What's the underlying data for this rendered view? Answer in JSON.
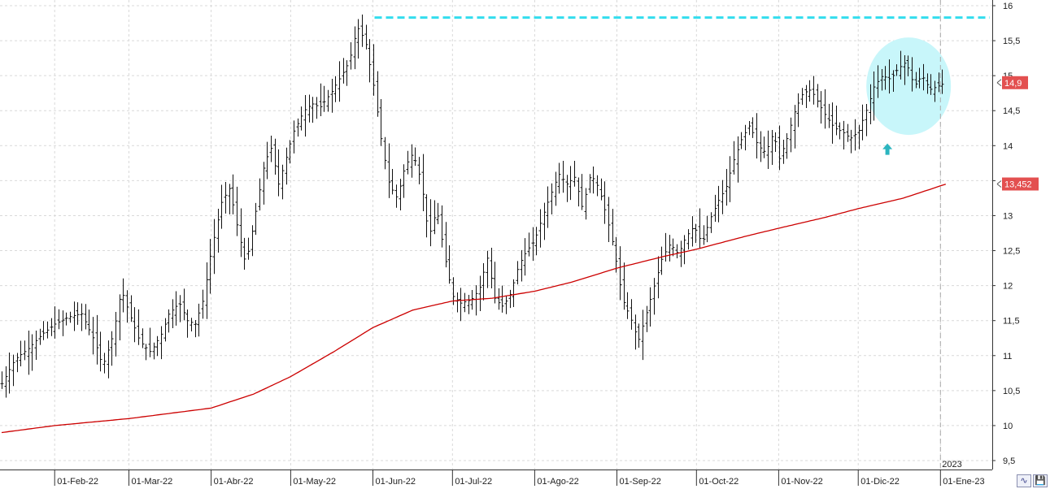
{
  "chart_data": {
    "type": "candlestick",
    "y_axis": {
      "position": "right",
      "ylim": [
        9.45,
        16.1
      ],
      "ticks": [
        "16",
        "15,5",
        "15",
        "14,5",
        "14",
        "13,5",
        "13",
        "12,5",
        "12",
        "11,5",
        "11",
        "10,5",
        "10",
        "9,5"
      ],
      "tick_values": [
        16,
        15.5,
        15,
        14.5,
        14,
        13.5,
        13,
        12.5,
        12,
        11.5,
        11,
        10.5,
        10,
        9.5
      ]
    },
    "x_axis": {
      "labels": [
        "01-Feb-22",
        "01-Mar-22",
        "01-Abr-22",
        "01-May-22",
        "01-Jun-22",
        "01-Jul-22",
        "01-Ago-22",
        "01-Sep-22",
        "01-Oct-22",
        "01-Nov-22",
        "01-Dic-22",
        "01-Ene-23"
      ],
      "label_days": [
        20,
        48,
        79,
        109,
        140,
        170,
        201,
        232,
        262,
        293,
        323,
        354
      ],
      "year_marker": "2023",
      "year_marker_day": 354,
      "day_range": [
        0,
        372
      ]
    },
    "grid": true,
    "price_series": {
      "last_value": 14.9,
      "last_label": "14,9",
      "points": [
        [
          0,
          10.6
        ],
        [
          5,
          10.95
        ],
        [
          10,
          11.1
        ],
        [
          15,
          11.3
        ],
        [
          20,
          11.45
        ],
        [
          25,
          11.55
        ],
        [
          30,
          11.6
        ],
        [
          35,
          11.2
        ],
        [
          38,
          10.85
        ],
        [
          42,
          11.3
        ],
        [
          45,
          11.95
        ],
        [
          48,
          11.6
        ],
        [
          52,
          11.2
        ],
        [
          56,
          11.05
        ],
        [
          60,
          11.3
        ],
        [
          63,
          11.6
        ],
        [
          67,
          11.75
        ],
        [
          70,
          11.5
        ],
        [
          73,
          11.45
        ],
        [
          76,
          11.8
        ],
        [
          79,
          12.5
        ],
        [
          83,
          13.2
        ],
        [
          86,
          13.4
        ],
        [
          89,
          12.8
        ],
        [
          92,
          12.3
        ],
        [
          96,
          13.1
        ],
        [
          99,
          13.75
        ],
        [
          102,
          14.0
        ],
        [
          104,
          13.4
        ],
        [
          107,
          13.8
        ],
        [
          110,
          14.2
        ],
        [
          114,
          14.5
        ],
        [
          117,
          14.6
        ],
        [
          120,
          14.55
        ],
        [
          124,
          14.75
        ],
        [
          128,
          15.0
        ],
        [
          131,
          15.2
        ],
        [
          134,
          15.7
        ],
        [
          137,
          15.5
        ],
        [
          140,
          14.9
        ],
        [
          143,
          14.1
        ],
        [
          146,
          13.45
        ],
        [
          149,
          13.25
        ],
        [
          152,
          13.7
        ],
        [
          155,
          13.9
        ],
        [
          158,
          13.5
        ],
        [
          161,
          12.7
        ],
        [
          164,
          13.1
        ],
        [
          167,
          12.4
        ],
        [
          170,
          11.85
        ],
        [
          173,
          11.75
        ],
        [
          177,
          11.8
        ],
        [
          180,
          11.95
        ],
        [
          183,
          12.4
        ],
        [
          186,
          11.8
        ],
        [
          189,
          11.7
        ],
        [
          192,
          11.9
        ],
        [
          195,
          12.3
        ],
        [
          198,
          12.5
        ],
        [
          201,
          12.65
        ],
        [
          204,
          13.0
        ],
        [
          207,
          13.3
        ],
        [
          210,
          13.6
        ],
        [
          213,
          13.45
        ],
        [
          216,
          13.55
        ],
        [
          219,
          13.1
        ],
        [
          222,
          13.6
        ],
        [
          225,
          13.4
        ],
        [
          228,
          13.0
        ],
        [
          231,
          12.5
        ],
        [
          234,
          11.8
        ],
        [
          237,
          11.55
        ],
        [
          240,
          11.2
        ],
        [
          243,
          11.6
        ],
        [
          246,
          12.0
        ],
        [
          249,
          12.4
        ],
        [
          252,
          12.6
        ],
        [
          255,
          12.45
        ],
        [
          258,
          12.7
        ],
        [
          261,
          12.85
        ],
        [
          264,
          12.6
        ],
        [
          267,
          12.95
        ],
        [
          270,
          13.2
        ],
        [
          273,
          13.4
        ],
        [
          276,
          13.8
        ],
        [
          279,
          14.1
        ],
        [
          282,
          14.3
        ],
        [
          285,
          14.0
        ],
        [
          288,
          13.9
        ],
        [
          291,
          14.2
        ],
        [
          293,
          13.8
        ],
        [
          296,
          14.1
        ],
        [
          299,
          14.5
        ],
        [
          302,
          14.75
        ],
        [
          305,
          14.8
        ],
        [
          308,
          14.6
        ],
        [
          311,
          14.4
        ],
        [
          314,
          14.25
        ],
        [
          317,
          14.2
        ],
        [
          320,
          14.1
        ],
        [
          323,
          14.2
        ],
        [
          326,
          14.5
        ],
        [
          329,
          14.85
        ],
        [
          332,
          15.0
        ],
        [
          335,
          14.95
        ],
        [
          338,
          15.1
        ],
        [
          341,
          15.2
        ],
        [
          344,
          14.85
        ],
        [
          347,
          15.0
        ],
        [
          350,
          14.8
        ],
        [
          353,
          14.85
        ],
        [
          356,
          14.9
        ]
      ]
    },
    "moving_average": {
      "color": "#cc0000",
      "last_value": 13.452,
      "last_label": "13,452",
      "points": [
        [
          0,
          9.9
        ],
        [
          20,
          10.0
        ],
        [
          48,
          10.1
        ],
        [
          79,
          10.25
        ],
        [
          95,
          10.45
        ],
        [
          109,
          10.7
        ],
        [
          125,
          11.05
        ],
        [
          140,
          11.4
        ],
        [
          155,
          11.65
        ],
        [
          170,
          11.78
        ],
        [
          185,
          11.82
        ],
        [
          201,
          11.92
        ],
        [
          215,
          12.05
        ],
        [
          232,
          12.25
        ],
        [
          250,
          12.42
        ],
        [
          262,
          12.52
        ],
        [
          280,
          12.7
        ],
        [
          293,
          12.82
        ],
        [
          310,
          12.97
        ],
        [
          323,
          13.1
        ],
        [
          340,
          13.25
        ],
        [
          356,
          13.45
        ]
      ]
    },
    "annotations": {
      "resistance_value": 15.83,
      "resistance_day_range": [
        140,
        372
      ],
      "resistance_color": "#33ddee",
      "highlight_color": "#c8f6fa",
      "highlight_center": {
        "day": 342,
        "value": 14.85
      },
      "arrow_color": "#2bb5bf",
      "arrow_at": {
        "day": 334,
        "value": 13.95
      }
    },
    "tag_color": "#e35050"
  },
  "controls": {
    "button_1_icon": "wave-icon",
    "button_1_glyph": "∿",
    "button_2_icon": "save-icon",
    "button_2_glyph": "💾"
  }
}
